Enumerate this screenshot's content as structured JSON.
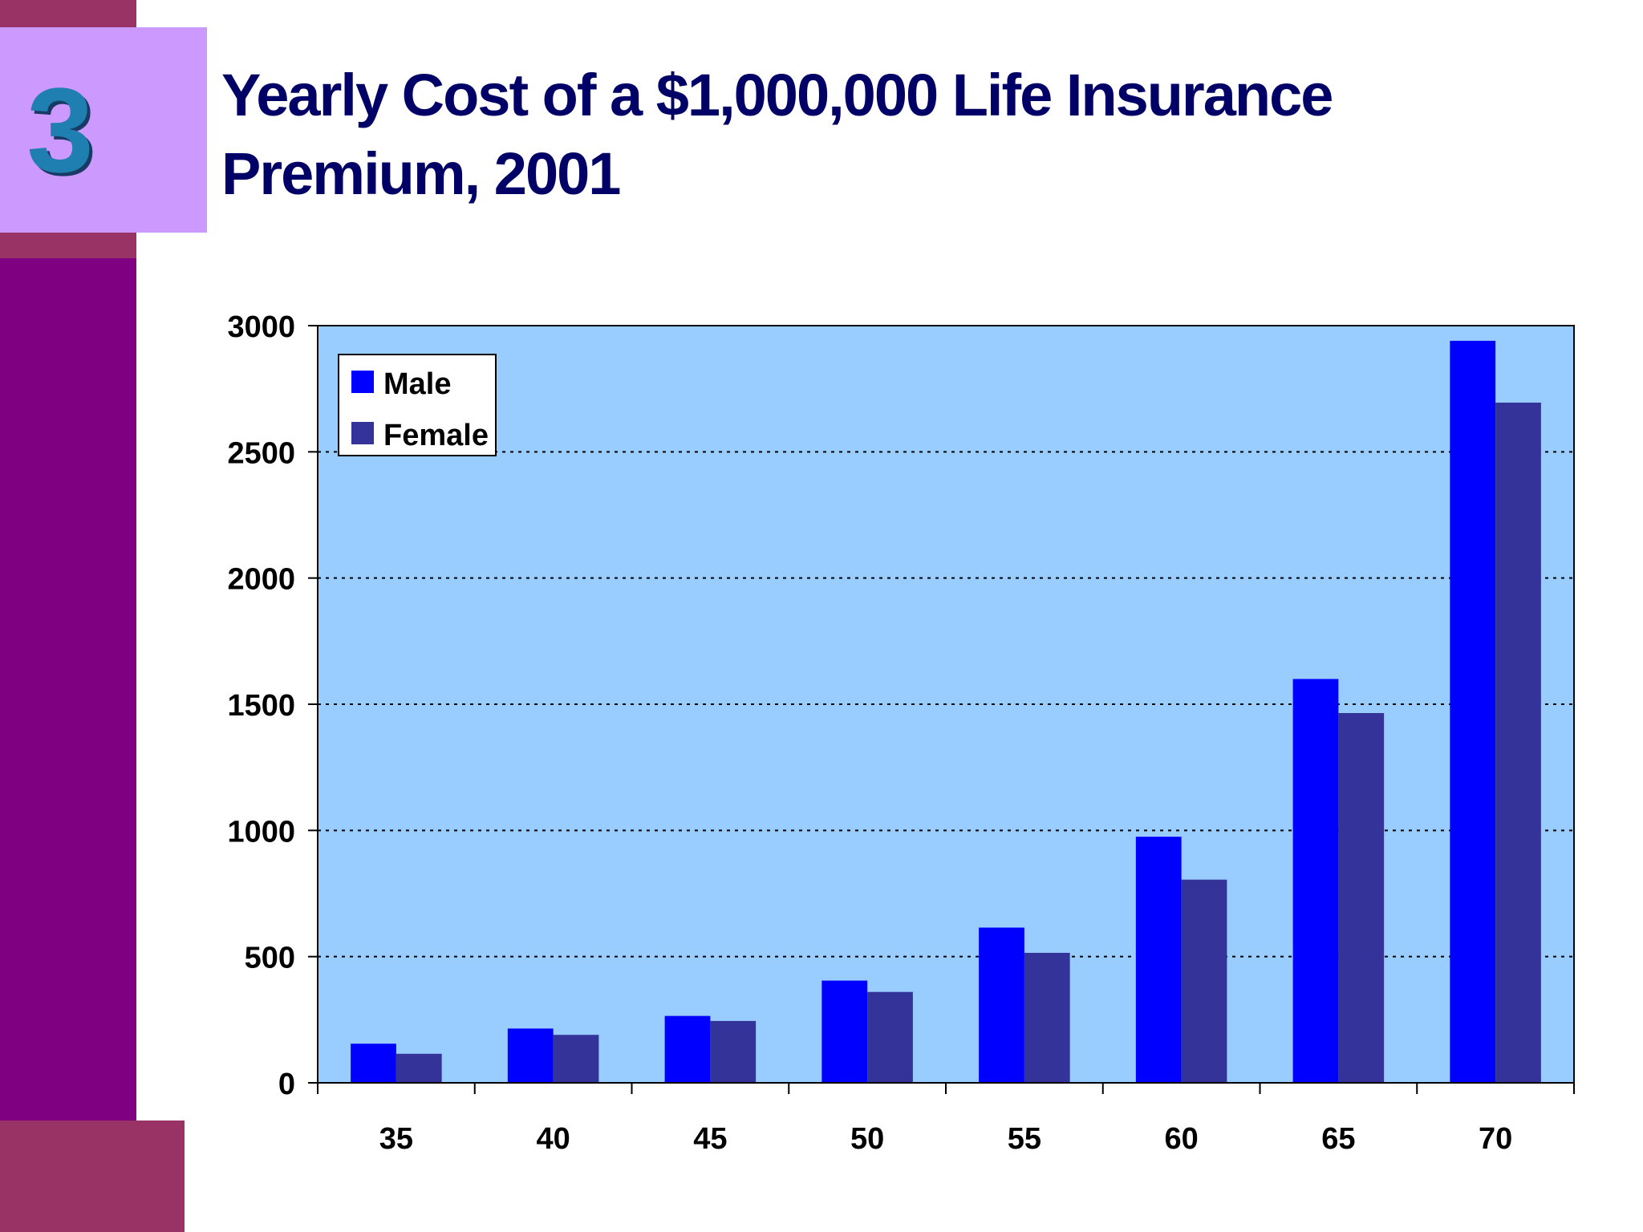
{
  "slide": {
    "number": "3",
    "title": "Yearly Cost of a $1,000,000 Life Insurance Premium, 2001"
  },
  "colors": {
    "side_bar": "#7f0080",
    "accent_band": "#993366",
    "number_box": "#cc99ff",
    "title": "#000066",
    "plot_background": "#99ccff",
    "male": "#0000ff",
    "female": "#333399"
  },
  "chart_data": {
    "type": "bar",
    "categories": [
      "35",
      "40",
      "45",
      "50",
      "55",
      "60",
      "65",
      "70"
    ],
    "series": [
      {
        "name": "Male",
        "values": [
          155,
          215,
          265,
          405,
          615,
          975,
          1600,
          2940
        ]
      },
      {
        "name": "Female",
        "values": [
          115,
          190,
          245,
          360,
          515,
          805,
          1465,
          2695
        ]
      }
    ],
    "yticks": [
      "0",
      "500",
      "1000",
      "1500",
      "2000",
      "2500",
      "3000"
    ],
    "ylim": [
      0,
      3000
    ],
    "grid": "dotted horizontal",
    "legend": "top-left",
    "title": "",
    "xlabel": "",
    "ylabel": ""
  }
}
